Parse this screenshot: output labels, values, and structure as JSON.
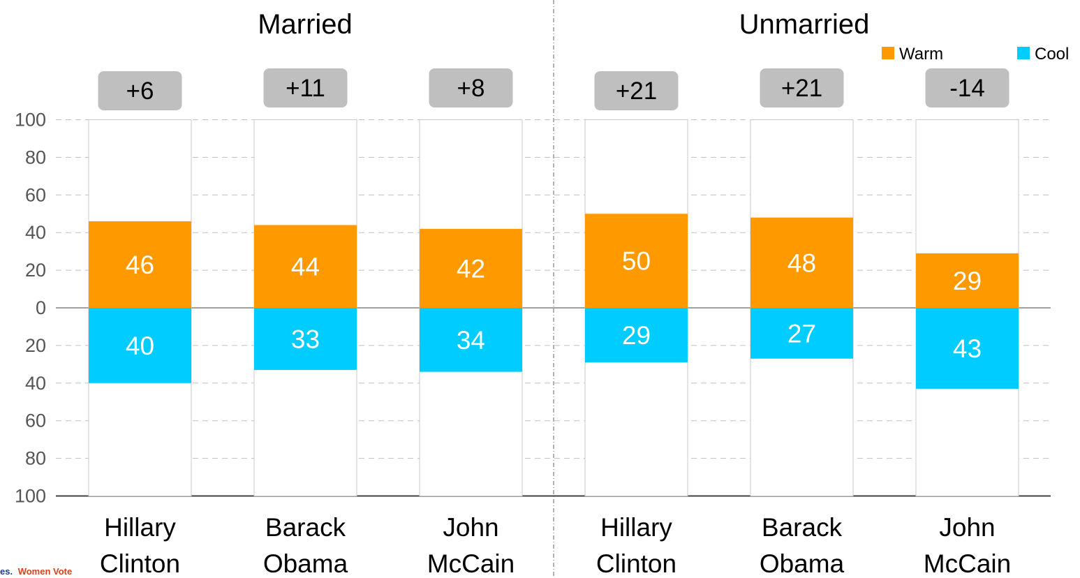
{
  "chart_data": {
    "type": "bar",
    "subtype": "diverging-stacked",
    "groups": [
      {
        "title": "Married",
        "categories": [
          [
            "Hillary",
            "Clinton"
          ],
          [
            "Barack",
            "Obama"
          ],
          [
            "John",
            "McCain"
          ]
        ]
      },
      {
        "title": "Unmarried",
        "categories": [
          [
            "Hillary",
            "Clinton"
          ],
          [
            "Barack",
            "Obama"
          ],
          [
            "John",
            "McCain"
          ]
        ]
      }
    ],
    "series": [
      {
        "name": "Warm",
        "color": "#FF9900",
        "values": [
          46,
          44,
          42,
          50,
          48,
          29
        ]
      },
      {
        "name": "Cool",
        "color": "#00CCFF",
        "values": [
          40,
          33,
          34,
          29,
          27,
          43
        ]
      }
    ],
    "differences": [
      "+6",
      "+11",
      "+8",
      "+21",
      "+21",
      "-14"
    ],
    "ytick_labels": [
      "100",
      "80",
      "60",
      "40",
      "20",
      "0",
      "20",
      "40",
      "60",
      "80",
      "100"
    ],
    "ylim": [
      -100,
      100
    ],
    "grid": "dashed horizontal",
    "legend_position": "top-right"
  },
  "logo": {
    "part1": "es.",
    "part2": "Women Vote"
  }
}
